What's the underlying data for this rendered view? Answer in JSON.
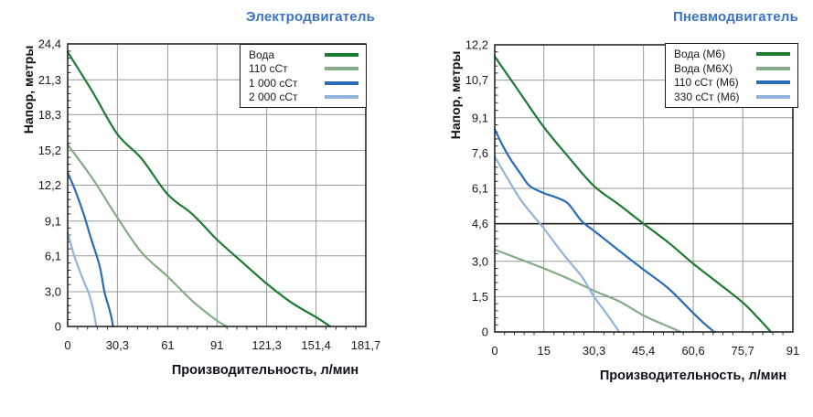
{
  "page": {
    "background": "#ffffff",
    "title_accent_color": "#3a73c8"
  },
  "chart_data": [
    {
      "id": "electric-motor",
      "type": "line",
      "title": "Электродвигатель",
      "xlabel": "Производительность, л/мин",
      "ylabel": "Напор, метры",
      "xlim": [
        0,
        181.7
      ],
      "ylim": [
        0,
        24.4
      ],
      "grid": true,
      "gridline_color": "#999999",
      "border_color": "#262626",
      "tick_color": "#333333",
      "legend_position": "top-right",
      "highlight_gridline_y": null,
      "x_ticks": [
        {
          "value": 0,
          "label": "0"
        },
        {
          "value": 30.3,
          "label": "30,3"
        },
        {
          "value": 61,
          "label": "61"
        },
        {
          "value": 91,
          "label": "91"
        },
        {
          "value": 121.3,
          "label": "121,3"
        },
        {
          "value": 151.4,
          "label": "151,4"
        },
        {
          "value": 181.7,
          "label": "181,7"
        }
      ],
      "y_ticks": [
        {
          "value": 0,
          "label": "0"
        },
        {
          "value": 3.0,
          "label": "3,0"
        },
        {
          "value": 6.1,
          "label": "6,1"
        },
        {
          "value": 9.1,
          "label": "9,1"
        },
        {
          "value": 12.2,
          "label": "12,2"
        },
        {
          "value": 15.2,
          "label": "15,2"
        },
        {
          "value": 18.3,
          "label": "18,3"
        },
        {
          "value": 21.3,
          "label": "21,3"
        },
        {
          "value": 24.4,
          "label": "24,4"
        }
      ],
      "series": [
        {
          "name": "Вода",
          "color": "#1e7b32",
          "points": [
            [
              0,
              23.7
            ],
            [
              15,
              20.3
            ],
            [
              30.3,
              16.6
            ],
            [
              45,
              14.5
            ],
            [
              61,
              11.4
            ],
            [
              76,
              9.7
            ],
            [
              91,
              7.5
            ],
            [
              106,
              5.6
            ],
            [
              121.3,
              3.7
            ],
            [
              136,
              2.1
            ],
            [
              151.4,
              0.8
            ],
            [
              160,
              0
            ]
          ]
        },
        {
          "name": "110 сСт",
          "color": "#84ac85",
          "points": [
            [
              0,
              15.7
            ],
            [
              15,
              12.8
            ],
            [
              30.3,
              9.4
            ],
            [
              45,
              6.4
            ],
            [
              61,
              4.3
            ],
            [
              76,
              2.2
            ],
            [
              91,
              0.5
            ],
            [
              97,
              0
            ]
          ]
        },
        {
          "name": "1 000 сСт",
          "color": "#2a6cb5",
          "points": [
            [
              0,
              13.3
            ],
            [
              5,
              11.6
            ],
            [
              10,
              9.6
            ],
            [
              14,
              7.7
            ],
            [
              17.7,
              6.1
            ],
            [
              20,
              4.9
            ],
            [
              22.4,
              3.0
            ],
            [
              25,
              1.7
            ],
            [
              26.8,
              0.7
            ],
            [
              27.6,
              0
            ]
          ]
        },
        {
          "name": "2 000 сСт",
          "color": "#90b4dc",
          "points": [
            [
              0,
              8.1
            ],
            [
              4,
              6.1
            ],
            [
              9,
              4.2
            ],
            [
              13,
              2.8
            ],
            [
              15.5,
              1.5
            ],
            [
              17.5,
              0
            ]
          ]
        }
      ]
    },
    {
      "id": "pneumatic-motor",
      "type": "line",
      "title": "Пневмодвигатель",
      "xlabel": "Производительность, л/мин",
      "ylabel": "Напор, метры",
      "xlim": [
        0,
        91
      ],
      "ylim": [
        0,
        12.2
      ],
      "grid": true,
      "gridline_color": "#999999",
      "border_color": "#262626",
      "tick_color": "#333333",
      "legend_position": "top-right",
      "highlight_gridline_y": 4.6,
      "x_ticks": [
        {
          "value": 0,
          "label": "0"
        },
        {
          "value": 15,
          "label": "15"
        },
        {
          "value": 30.3,
          "label": "30,3"
        },
        {
          "value": 45.4,
          "label": "45,4"
        },
        {
          "value": 60.6,
          "label": "60,6"
        },
        {
          "value": 75.7,
          "label": "75,7"
        },
        {
          "value": 91,
          "label": "91"
        }
      ],
      "y_ticks": [
        {
          "value": 0,
          "label": "0"
        },
        {
          "value": 1.5,
          "label": "1,5"
        },
        {
          "value": 3.0,
          "label": "3,0"
        },
        {
          "value": 4.6,
          "label": "4,6"
        },
        {
          "value": 6.1,
          "label": "6,1"
        },
        {
          "value": 7.6,
          "label": "7,6"
        },
        {
          "value": 9.1,
          "label": "9,1"
        },
        {
          "value": 10.7,
          "label": "10,7"
        },
        {
          "value": 12.2,
          "label": "12,2"
        }
      ],
      "series": [
        {
          "name": "Вода (М6)",
          "color": "#1e7b32",
          "points": [
            [
              0,
              11.7
            ],
            [
              7.5,
              10.2
            ],
            [
              15,
              8.7
            ],
            [
              22.7,
              7.4
            ],
            [
              30.3,
              6.2
            ],
            [
              38,
              5.4
            ],
            [
              45.4,
              4.6
            ],
            [
              53,
              3.8
            ],
            [
              60.6,
              2.9
            ],
            [
              68,
              2.1
            ],
            [
              75.7,
              1.25
            ],
            [
              80,
              0.65
            ],
            [
              84.3,
              0
            ]
          ]
        },
        {
          "name": "Вода (М6Х)",
          "color": "#84ac85",
          "points": [
            [
              0,
              3.5
            ],
            [
              7.5,
              3.1
            ],
            [
              15,
              2.7
            ],
            [
              22.7,
              2.25
            ],
            [
              30.3,
              1.75
            ],
            [
              38,
              1.3
            ],
            [
              45.4,
              0.7
            ],
            [
              51,
              0.35
            ],
            [
              56.8,
              0
            ]
          ]
        },
        {
          "name": "110 сСт (М6)",
          "color": "#2a6cb5",
          "points": [
            [
              0,
              8.6
            ],
            [
              2.5,
              7.9
            ],
            [
              5,
              7.3
            ],
            [
              8,
              6.7
            ],
            [
              10.7,
              6.2
            ],
            [
              15,
              5.9
            ],
            [
              19,
              5.7
            ],
            [
              22.4,
              5.45
            ],
            [
              26.6,
              4.7
            ],
            [
              30.3,
              4.3
            ],
            [
              38,
              3.45
            ],
            [
              45.4,
              2.65
            ],
            [
              53,
              1.85
            ],
            [
              60.6,
              0.8
            ],
            [
              64,
              0.35
            ],
            [
              67,
              0
            ]
          ]
        },
        {
          "name": "330 сСт (М6)",
          "color": "#90b4dc",
          "points": [
            [
              0,
              7.45
            ],
            [
              4,
              6.5
            ],
            [
              8,
              5.6
            ],
            [
              12,
              4.9
            ],
            [
              15,
              4.4
            ],
            [
              19,
              3.65
            ],
            [
              23,
              2.95
            ],
            [
              26.6,
              2.35
            ],
            [
              30.3,
              1.5
            ],
            [
              34,
              0.8
            ],
            [
              38,
              0
            ]
          ]
        }
      ]
    }
  ]
}
